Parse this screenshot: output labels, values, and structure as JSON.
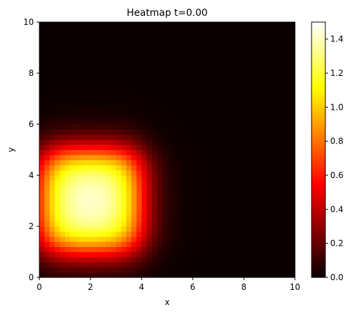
{
  "chart_data": {
    "type": "heatmap",
    "title": "Heatmap t=0.00",
    "xlabel": "x",
    "ylabel": "y",
    "xlim": [
      0,
      10
    ],
    "ylim": [
      0,
      10
    ],
    "xticks": [
      0,
      2,
      4,
      6,
      8,
      10
    ],
    "yticks": [
      0,
      2,
      4,
      6,
      8,
      10
    ],
    "grid_size": [
      50,
      50
    ],
    "field": {
      "shape": "smoothed square",
      "x_range": [
        0,
        4
      ],
      "y_range": [
        1,
        5
      ],
      "peak_value": 1.5,
      "edge_softness": 0.45
    },
    "colorbar": {
      "colormap": "hot",
      "vmin": 0.0,
      "vmax": 1.5,
      "ticks": [
        0.0,
        0.2,
        0.4,
        0.6,
        0.8,
        1.0,
        1.2,
        1.4
      ],
      "tick_labels": [
        "0.0",
        "0.2",
        "0.4",
        "0.6",
        "0.8",
        "1.0",
        "1.2",
        "1.4"
      ]
    },
    "grid": false,
    "legend": "none"
  }
}
